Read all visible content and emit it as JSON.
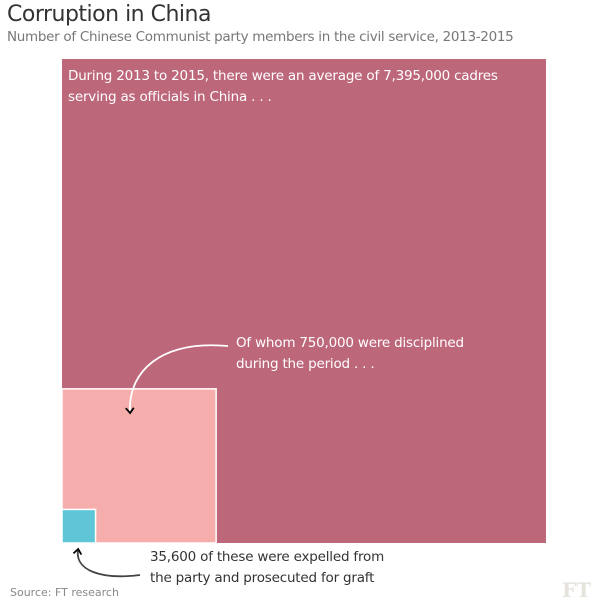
{
  "header": {
    "title": "Corruption in China",
    "subtitle": "Number of Chinese Communist party members in the civil service, 2013-2015"
  },
  "chart_data": {
    "type": "nested-area-squares",
    "title": "Corruption in China",
    "subtitle": "Number of Chinese Communist party members in the civil service, 2013-2015",
    "series": [
      {
        "name": "Cadres serving as officials (average)",
        "value": 7395000,
        "color": "#bd677b",
        "annotation": "During 2013 to 2015, there were an average of 7,395,000 cadres serving as officials in China . . ."
      },
      {
        "name": "Disciplined",
        "value": 750000,
        "color": "#f5aeab",
        "annotation": "Of whom 750,000 were disciplined during the period . . ."
      },
      {
        "name": "Expelled and prosecuted",
        "value": 35600,
        "color": "#5fc6d8",
        "annotation": "35,600 of these were expelled from the party and prosecuted for graft"
      }
    ]
  },
  "footer": {
    "source": "Source: FT research",
    "logo": "FT"
  }
}
